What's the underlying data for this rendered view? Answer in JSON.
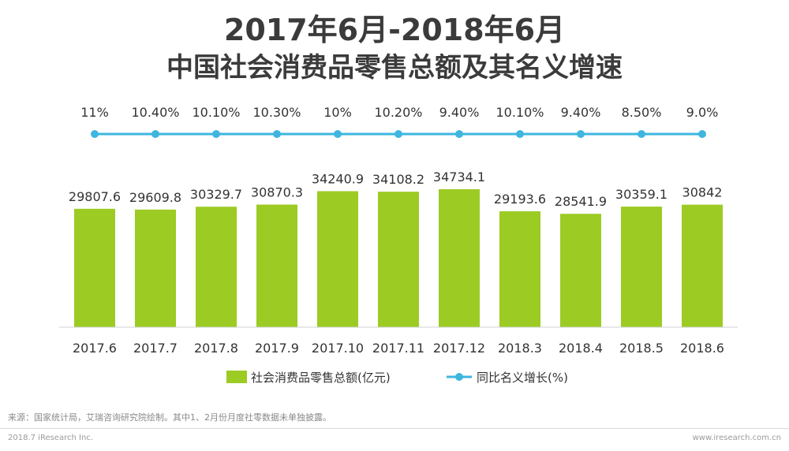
{
  "header": {
    "title_line1": "2017年6月-2018年6月",
    "title_line2": "中国社会消费品零售总额及其名义增速"
  },
  "chart_data": {
    "type": "bar",
    "categories": [
      "2017.6",
      "2017.7",
      "2017.8",
      "2017.9",
      "2017.10",
      "2017.11",
      "2017.12",
      "2018.3",
      "2018.4",
      "2018.5",
      "2018.6"
    ],
    "series": [
      {
        "name": "社会消费品零售总额(亿元)",
        "kind": "bar",
        "color": "#9ccb24",
        "values": [
          29807.6,
          29609.8,
          30329.7,
          30870.3,
          34240.9,
          34108.2,
          34734.1,
          29193.6,
          28541.9,
          30359.1,
          30842
        ],
        "labels": [
          "29807.6",
          "29609.8",
          "30329.7",
          "30870.3",
          "34240.9",
          "34108.2",
          "34734.1",
          "29193.6",
          "28541.9",
          "30359.1",
          "30842"
        ]
      },
      {
        "name": "同比名义增长(%)",
        "kind": "line",
        "color": "#3eb6df",
        "values": [
          11,
          10.4,
          10.1,
          10.3,
          10,
          10.2,
          9.4,
          10.1,
          9.4,
          8.5,
          9.0
        ],
        "labels": [
          "11%",
          "10.40%",
          "10.10%",
          "10.30%",
          "10%",
          "10.20%",
          "9.40%",
          "10.10%",
          "9.40%",
          "8.50%",
          "9.0%"
        ]
      }
    ],
    "ylim": [
      0,
      40000
    ],
    "grid": false,
    "legend": "bottom-center"
  },
  "footer": {
    "source": "来源：国家统计局，艾瑞咨询研究院绘制。其中1、2月份月度社零数据未单独披露。",
    "left": "2018.7 iResearch Inc.",
    "right": "www.iresearch.com.cn"
  }
}
